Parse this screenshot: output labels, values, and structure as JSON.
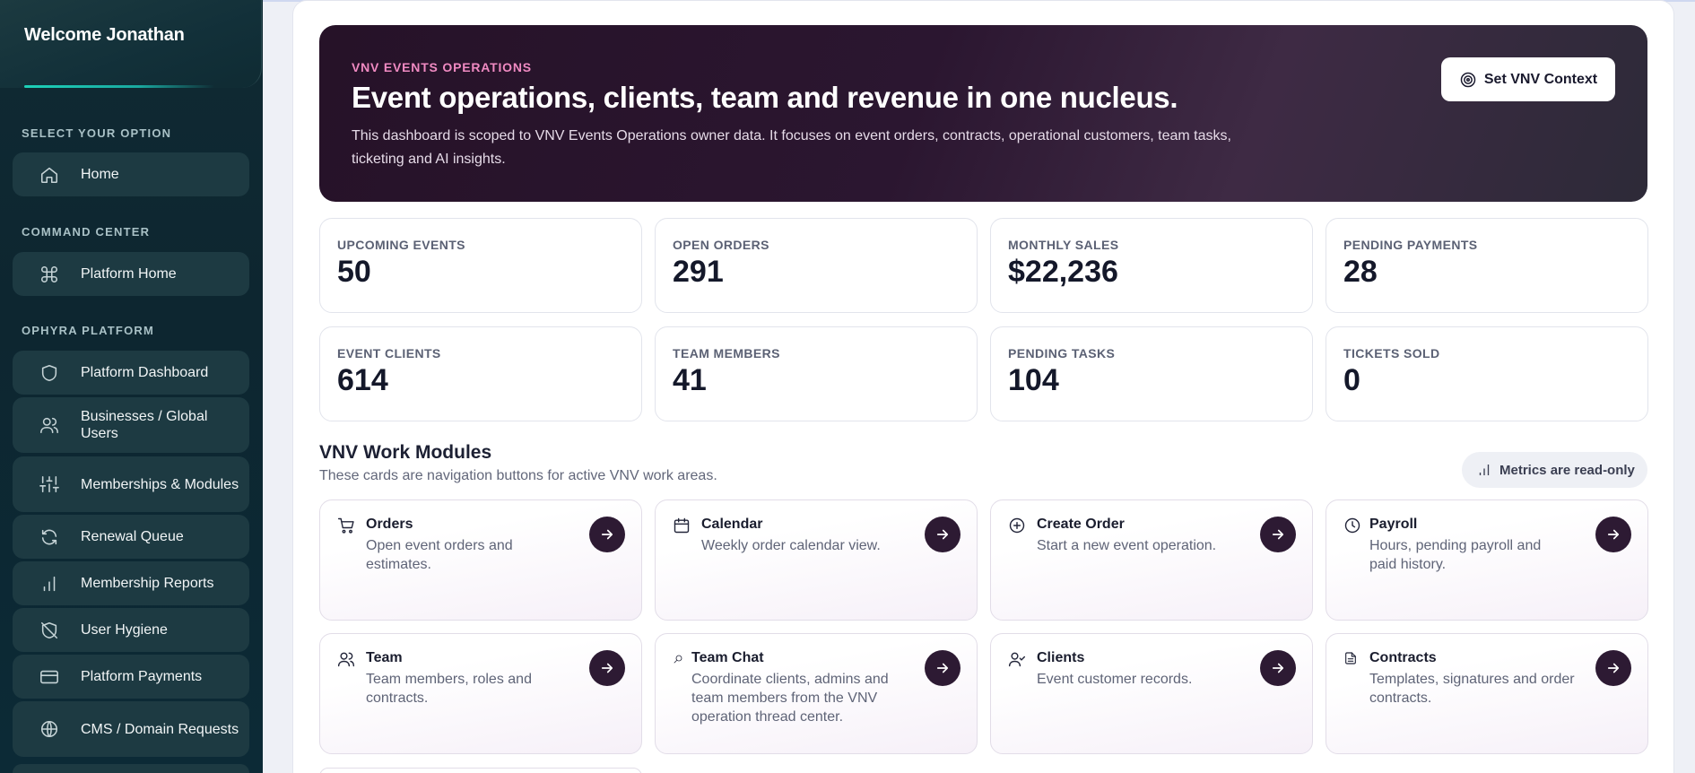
{
  "sidebar": {
    "welcome": "Welcome Jonathan",
    "sections": {
      "select": "SELECT YOUR OPTION",
      "command": "COMMAND CENTER",
      "platform": "OPHYRA PLATFORM"
    },
    "items": [
      {
        "label": "Home",
        "icon": "home-icon"
      },
      {
        "label": "Platform Home",
        "icon": "command-icon"
      },
      {
        "label": "Platform Dashboard",
        "icon": "shield-icon"
      },
      {
        "label": "Businesses / Global Users",
        "icon": "users-icon"
      },
      {
        "label": "Memberships & Modules",
        "icon": "sliders-icon"
      },
      {
        "label": "Renewal Queue",
        "icon": "refresh-icon"
      },
      {
        "label": "Membership Reports",
        "icon": "bar-chart-icon"
      },
      {
        "label": "User Hygiene",
        "icon": "shield-off-icon"
      },
      {
        "label": "Platform Payments",
        "icon": "credit-card-icon"
      },
      {
        "label": "CMS / Domain Requests",
        "icon": "globe-icon"
      }
    ]
  },
  "hero": {
    "eyebrow": "VNV EVENTS OPERATIONS",
    "title": "Event operations, clients, team and revenue in one nucleus.",
    "description": "This dashboard is scoped to VNV Events Operations owner data. It focuses on event orders, contracts, operational customers, team tasks, ticketing and AI insights.",
    "button": "Set VNV Context"
  },
  "stats": [
    {
      "label": "UPCOMING EVENTS",
      "value": "50"
    },
    {
      "label": "OPEN ORDERS",
      "value": "291"
    },
    {
      "label": "MONTHLY SALES",
      "value": "$22,236"
    },
    {
      "label": "PENDING PAYMENTS",
      "value": "28"
    },
    {
      "label": "EVENT CLIENTS",
      "value": "614"
    },
    {
      "label": "TEAM MEMBERS",
      "value": "41"
    },
    {
      "label": "PENDING TASKS",
      "value": "104"
    },
    {
      "label": "TICKETS SOLD",
      "value": "0"
    }
  ],
  "modules": {
    "title": "VNV Work Modules",
    "subtitle": "These cards are navigation buttons for active VNV work areas.",
    "readonly": "Metrics are read-only",
    "cards": [
      {
        "title": "Orders",
        "desc": "Open event orders and estimates.",
        "icon": "cart-icon"
      },
      {
        "title": "Calendar",
        "desc": "Weekly order calendar view.",
        "icon": "calendar-icon"
      },
      {
        "title": "Create Order",
        "desc": "Start a new event operation.",
        "icon": "plus-circle-icon"
      },
      {
        "title": "Payroll",
        "desc": "Hours, pending payroll and paid history.",
        "icon": "clock-icon"
      },
      {
        "title": "Team",
        "desc": "Team members, roles and contracts.",
        "icon": "users-icon"
      },
      {
        "title": "Team Chat",
        "desc": "Coordinate clients, admins and team members from the VNV operation thread center.",
        "icon": "search-icon"
      },
      {
        "title": "Clients",
        "desc": "Event customer records.",
        "icon": "user-check-icon"
      },
      {
        "title": "Contracts",
        "desc": "Templates, signatures and order contracts.",
        "icon": "file-text-icon"
      }
    ]
  }
}
